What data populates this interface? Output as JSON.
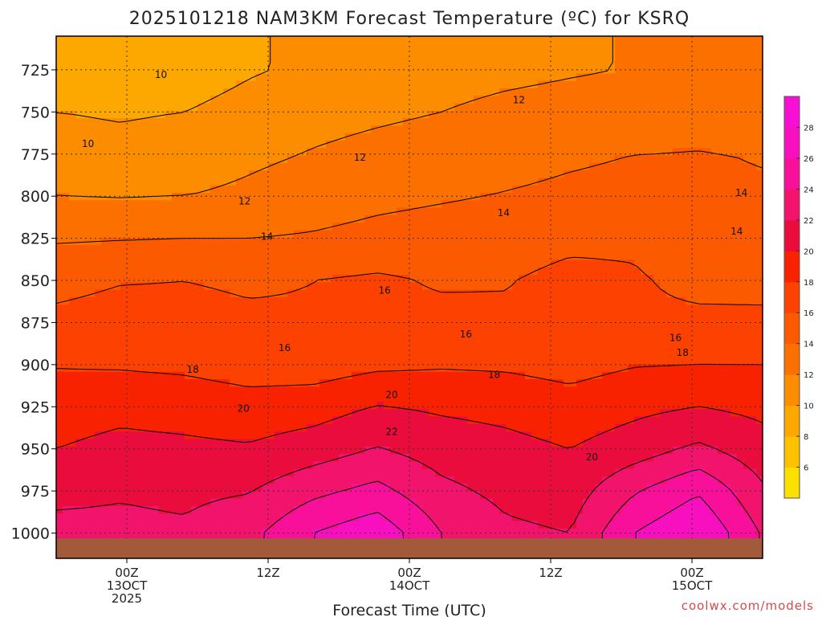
{
  "chart_data": {
    "type": "heatmap",
    "title": "2025101218 NAM3KM Forecast Temperature (ºC) for KSRQ",
    "xlabel": "Forecast Time (UTC)",
    "ylabel": "",
    "credit": "coolwx.com/models",
    "x_range_hours": [
      -6,
      54
    ],
    "y_range_hpa": [
      705,
      1015
    ],
    "y_ticks": [
      725,
      750,
      775,
      800,
      825,
      850,
      875,
      900,
      925,
      950,
      975,
      1000
    ],
    "y_tick_labels": [
      "725",
      "750",
      "775",
      "800",
      "825",
      "850",
      "875",
      "900",
      "925",
      "950",
      "975",
      "1000"
    ],
    "x_ticks": [
      {
        "hour": 0,
        "lines": [
          "00Z",
          "13OCT",
          "2025"
        ]
      },
      {
        "hour": 12,
        "lines": [
          "12Z"
        ]
      },
      {
        "hour": 24,
        "lines": [
          "00Z",
          "14OCT"
        ]
      },
      {
        "hour": 36,
        "lines": [
          "12Z"
        ]
      },
      {
        "hour": 48,
        "lines": [
          "00Z",
          "15OCT"
        ]
      }
    ],
    "grid": true,
    "colorbar": {
      "placement": "right",
      "min": 4,
      "max": 30,
      "ticks": [
        "6",
        "8",
        "10",
        "12",
        "14",
        "16",
        "18",
        "20",
        "22",
        "24",
        "26",
        "28"
      ],
      "colors": [
        "#fce000",
        "#fcc200",
        "#fca800",
        "#fc8c00",
        "#fc7000",
        "#fc5a00",
        "#fc4100",
        "#f82200",
        "#ea0c3c",
        "#f2146c",
        "#f80f9a",
        "#f80fbf",
        "#f80fd6"
      ]
    },
    "series": [
      {
        "level": 725,
        "temps": [
          8.5,
          8.6,
          9.0,
          9.8,
          10.4,
          10.8,
          11.2,
          11.5,
          11.8,
          12.1,
          12.2,
          12.3
        ]
      },
      {
        "level": 750,
        "temps": [
          10.0,
          9.8,
          10.0,
          10.7,
          11.4,
          11.7,
          12.0,
          12.5,
          12.8,
          13.0,
          13.0,
          13.2
        ]
      },
      {
        "level": 775,
        "temps": [
          10.9,
          10.6,
          10.9,
          11.6,
          12.1,
          12.5,
          12.8,
          13.3,
          13.7,
          14.0,
          14.1,
          13.9
        ]
      },
      {
        "level": 800,
        "temps": [
          12.0,
          11.9,
          12.0,
          12.4,
          13.0,
          13.5,
          13.8,
          14.1,
          14.4,
          14.6,
          14.3,
          14.2
        ]
      },
      {
        "level": 825,
        "temps": [
          13.8,
          13.9,
          14.0,
          14.0,
          14.2,
          14.6,
          14.9,
          15.2,
          15.6,
          15.7,
          14.8,
          14.6
        ]
      },
      {
        "level": 850,
        "temps": [
          15.4,
          15.9,
          16.0,
          15.7,
          16.0,
          16.3,
          15.8,
          15.9,
          16.5,
          16.2,
          15.5,
          15.3
        ]
      },
      {
        "level": 875,
        "temps": [
          16.5,
          16.8,
          16.7,
          16.4,
          16.2,
          16.4,
          16.5,
          16.3,
          16.6,
          16.3,
          16.4,
          16.5
        ]
      },
      {
        "level": 900,
        "temps": [
          17.9,
          17.8,
          17.6,
          17.1,
          17.0,
          17.6,
          17.8,
          17.7,
          17.3,
          17.9,
          18.0,
          18.0
        ]
      },
      {
        "level": 925,
        "temps": [
          19.0,
          19.4,
          19.2,
          18.8,
          19.1,
          20.1,
          19.7,
          19.4,
          18.8,
          19.5,
          20.0,
          19.5
        ]
      },
      {
        "level": 950,
        "temps": [
          20.0,
          20.6,
          20.4,
          20.2,
          21.0,
          22.1,
          21.1,
          20.6,
          20.0,
          21.0,
          22.4,
          20.8
        ]
      },
      {
        "level": 975,
        "temps": [
          21.5,
          21.8,
          21.6,
          21.9,
          23.5,
          24.6,
          22.5,
          21.5,
          21.0,
          23.8,
          25.8,
          22.3
        ]
      },
      {
        "level": 1000,
        "temps": [
          22.6,
          22.5,
          22.3,
          23.4,
          26.0,
          27.4,
          24.0,
          22.4,
          22.0,
          26.0,
          28.0,
          23.8
        ]
      }
    ],
    "contour_labels": [
      {
        "text": "10",
        "hour": 2.9,
        "hpa": 728
      },
      {
        "text": "10",
        "hour": -3.3,
        "hpa": 769
      },
      {
        "text": "12",
        "hour": 33.3,
        "hpa": 743
      },
      {
        "text": "12",
        "hour": 19.8,
        "hpa": 777
      },
      {
        "text": "12",
        "hour": 10.0,
        "hpa": 803
      },
      {
        "text": "14",
        "hour": 32.0,
        "hpa": 810
      },
      {
        "text": "14",
        "hour": 52.2,
        "hpa": 798
      },
      {
        "text": "14",
        "hour": 11.9,
        "hpa": 824
      },
      {
        "text": "14",
        "hour": 51.8,
        "hpa": 821
      },
      {
        "text": "16",
        "hour": 21.9,
        "hpa": 856
      },
      {
        "text": "16",
        "hour": 13.4,
        "hpa": 890
      },
      {
        "text": "16",
        "hour": 28.8,
        "hpa": 882
      },
      {
        "text": "16",
        "hour": 46.6,
        "hpa": 884
      },
      {
        "text": "18",
        "hour": 5.6,
        "hpa": 903
      },
      {
        "text": "18",
        "hour": 31.2,
        "hpa": 906
      },
      {
        "text": "18",
        "hour": 47.2,
        "hpa": 893
      },
      {
        "text": "20",
        "hour": 9.9,
        "hpa": 926
      },
      {
        "text": "20",
        "hour": 22.5,
        "hpa": 918
      },
      {
        "text": "20",
        "hour": 39.5,
        "hpa": 955
      },
      {
        "text": "22",
        "hour": 22.5,
        "hpa": 940
      }
    ]
  }
}
